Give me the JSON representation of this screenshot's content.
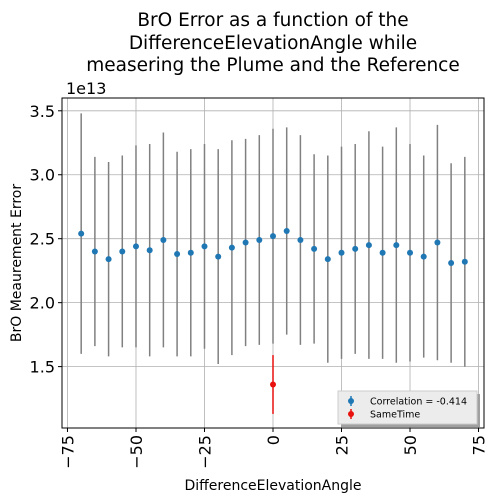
{
  "chart_data": {
    "type": "scatter",
    "title_lines": [
      "BrO Error as a function of the",
      "DifferenceElevationAngle while",
      "measering the Plume and the Reference"
    ],
    "xlabel": "DifferenceElevationAngle",
    "ylabel": "BrO Meaurement Error",
    "y_offset_label": "1e13",
    "xlim": [
      -77,
      77
    ],
    "ylim": [
      1.02,
      3.6
    ],
    "xticks": [
      -75,
      -50,
      -25,
      0,
      25,
      50,
      75
    ],
    "xtick_labels": [
      "−75",
      "−50",
      "−25",
      "0",
      "25",
      "50",
      "75"
    ],
    "yticks": [
      1.5,
      2.0,
      2.5,
      3.0,
      3.5
    ],
    "ytick_labels": [
      "1.5",
      "2.0",
      "2.5",
      "3.0",
      "3.5"
    ],
    "grid": true,
    "legend_position": "lower-right",
    "series": [
      {
        "name": "Correlation = -0.414",
        "color": "#1f77b4",
        "errorbar_color": "#808080",
        "points": [
          {
            "x": -70,
            "y": 2.54,
            "err": 0.94
          },
          {
            "x": -65,
            "y": 2.4,
            "err": 0.74
          },
          {
            "x": -60,
            "y": 2.34,
            "err": 0.76
          },
          {
            "x": -55,
            "y": 2.4,
            "err": 0.75
          },
          {
            "x": -50,
            "y": 2.44,
            "err": 0.79
          },
          {
            "x": -45,
            "y": 2.41,
            "err": 0.83
          },
          {
            "x": -40,
            "y": 2.49,
            "err": 0.84
          },
          {
            "x": -35,
            "y": 2.38,
            "err": 0.8
          },
          {
            "x": -30,
            "y": 2.39,
            "err": 0.81
          },
          {
            "x": -25,
            "y": 2.44,
            "err": 0.8
          },
          {
            "x": -20,
            "y": 2.36,
            "err": 0.84
          },
          {
            "x": -15,
            "y": 2.43,
            "err": 0.84
          },
          {
            "x": -10,
            "y": 2.47,
            "err": 0.81
          },
          {
            "x": -5,
            "y": 2.49,
            "err": 0.82
          },
          {
            "x": 0,
            "y": 2.52,
            "err": 0.84
          },
          {
            "x": 5,
            "y": 2.56,
            "err": 0.81
          },
          {
            "x": 10,
            "y": 2.49,
            "err": 0.82
          },
          {
            "x": 15,
            "y": 2.42,
            "err": 0.74
          },
          {
            "x": 20,
            "y": 2.34,
            "err": 0.81
          },
          {
            "x": 25,
            "y": 2.39,
            "err": 0.83
          },
          {
            "x": 30,
            "y": 2.42,
            "err": 0.82
          },
          {
            "x": 35,
            "y": 2.45,
            "err": 0.89
          },
          {
            "x": 40,
            "y": 2.39,
            "err": 0.83
          },
          {
            "x": 45,
            "y": 2.45,
            "err": 0.92
          },
          {
            "x": 50,
            "y": 2.39,
            "err": 0.85
          },
          {
            "x": 55,
            "y": 2.36,
            "err": 0.79
          },
          {
            "x": 60,
            "y": 2.47,
            "err": 0.92
          },
          {
            "x": 65,
            "y": 2.31,
            "err": 0.78
          },
          {
            "x": 70,
            "y": 2.32,
            "err": 0.82
          }
        ]
      },
      {
        "name": "SameTime",
        "color": "#e8110e",
        "errorbar_color": "#e8110e",
        "points": [
          {
            "x": 0,
            "y": 1.36,
            "err": 0.23
          }
        ]
      }
    ]
  }
}
